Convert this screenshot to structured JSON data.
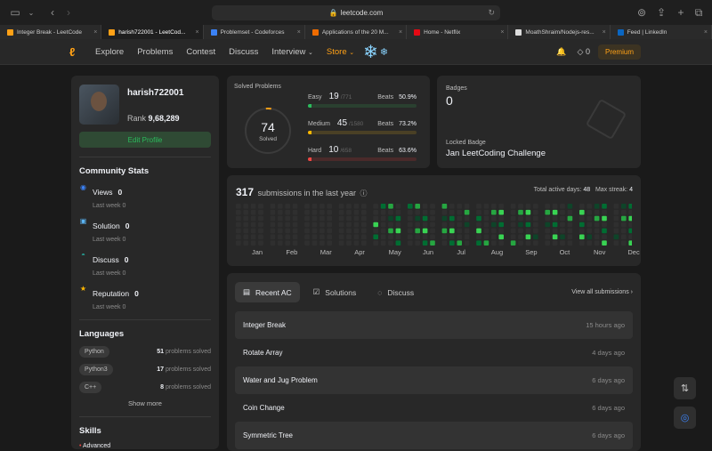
{
  "browser": {
    "url": "leetcode.com",
    "tabs": [
      {
        "label": "Integer Break - LeetCode",
        "color": "#ffa116"
      },
      {
        "label": "harish722001 - LeetCod...",
        "color": "#ffa116",
        "active": true
      },
      {
        "label": "Problemset - Codeforces",
        "color": "#3b82f6"
      },
      {
        "label": "Applications of the 20 M...",
        "color": "#ef6c00"
      },
      {
        "label": "Home - Netflix",
        "color": "#e50914"
      },
      {
        "label": "MoathShraim/Nodejs-res...",
        "color": "#dddddd"
      },
      {
        "label": "Feed | LinkedIn",
        "color": "#0a66c2"
      }
    ]
  },
  "nav": {
    "items": [
      "Explore",
      "Problems",
      "Contest",
      "Discuss",
      "Interview",
      "Store"
    ],
    "notif_count": "0",
    "premium": "Premium"
  },
  "profile": {
    "username": "harish722001",
    "rank_label": "Rank",
    "rank": "9,68,289",
    "edit": "Edit Profile"
  },
  "community": {
    "title": "Community Stats",
    "stats": [
      {
        "label": "Views",
        "value": "0",
        "last": "Last week 0",
        "color": "#3b82f6",
        "icon": "eye-icon"
      },
      {
        "label": "Solution",
        "value": "0",
        "last": "Last week 0",
        "color": "#5bb5f5",
        "icon": "solution-icon"
      },
      {
        "label": "Discuss",
        "value": "0",
        "last": "Last week 0",
        "color": "#26a69a",
        "icon": "discuss-icon"
      },
      {
        "label": "Reputation",
        "value": "0",
        "last": "Last week 0",
        "color": "#ffb800",
        "icon": "star-icon"
      }
    ]
  },
  "languages": {
    "title": "Languages",
    "items": [
      {
        "name": "Python",
        "count": "51",
        "suffix": "problems solved"
      },
      {
        "name": "Python3",
        "count": "17",
        "suffix": "problems solved"
      },
      {
        "name": "C++",
        "count": "8",
        "suffix": "problems solved"
      }
    ],
    "more": "Show more"
  },
  "skills": {
    "title": "Skills",
    "level": "Advanced"
  },
  "solved": {
    "title": "Solved Problems",
    "total": "74",
    "total_label": "Solved",
    "rows": [
      {
        "label": "Easy",
        "count": "19",
        "total": "/771",
        "beats_label": "Beats",
        "beats": "50.9%",
        "fill": 0.0246,
        "color": "#2cbb5d",
        "track": "#2a4030"
      },
      {
        "label": "Medium",
        "count": "45",
        "total": "/1580",
        "beats_label": "Beats",
        "beats": "73.2%",
        "fill": 0.0285,
        "color": "#ffb800",
        "track": "#4a4025"
      },
      {
        "label": "Hard",
        "count": "10",
        "total": "/658",
        "beats_label": "Beats",
        "beats": "63.6%",
        "fill": 0.0152,
        "color": "#ef4743",
        "track": "#4a2a2a"
      }
    ]
  },
  "badges": {
    "title": "Badges",
    "count": "0",
    "locked": "Locked Badge",
    "challenge": "Jan LeetCoding Challenge"
  },
  "calendar": {
    "count": "317",
    "label": "submissions in the last year",
    "active_label": "Total active days:",
    "active": "48",
    "streak_label": "Max streak:",
    "streak": "4",
    "months": [
      "Jan",
      "Feb",
      "Mar",
      "Apr",
      "May",
      "Jun",
      "Jul",
      "Aug",
      "Sep",
      "Oct",
      "Nov",
      "Dec"
    ]
  },
  "submissions": {
    "tabs": [
      "Recent AC",
      "Solutions",
      "Discuss"
    ],
    "view_all": "View all submissions",
    "items": [
      {
        "title": "Integer Break",
        "time": "15 hours ago"
      },
      {
        "title": "Rotate Array",
        "time": "4 days ago"
      },
      {
        "title": "Water and Jug Problem",
        "time": "6 days ago"
      },
      {
        "title": "Coin Change",
        "time": "6 days ago"
      },
      {
        "title": "Symmetric Tree",
        "time": "6 days ago"
      }
    ]
  }
}
